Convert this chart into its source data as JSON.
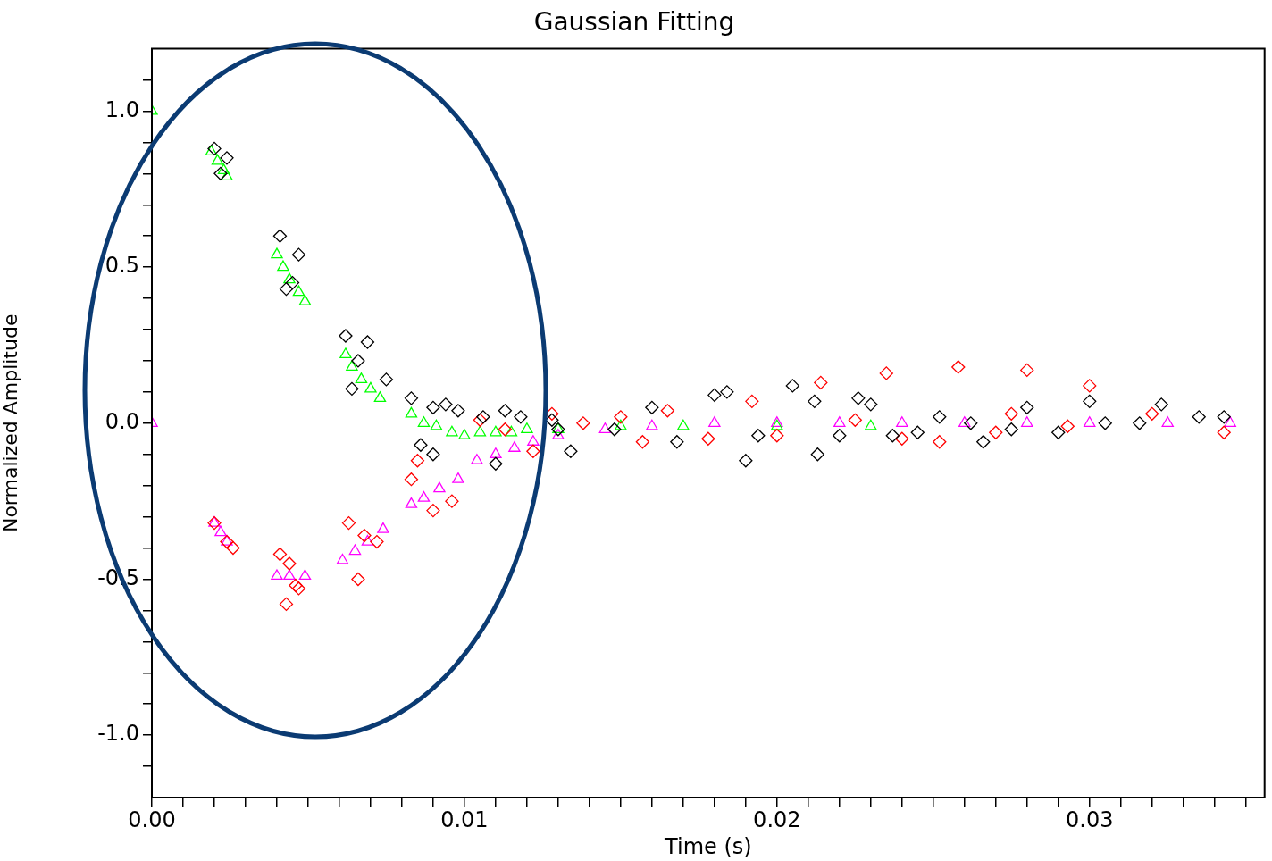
{
  "chart_data": {
    "type": "scatter",
    "title": "Gaussian Fitting",
    "xlabel": "Time (s)",
    "ylabel": "Normalized Amplitude",
    "xlim": [
      0,
      0.0356
    ],
    "ylim": [
      -1.2,
      1.2
    ],
    "xticks": [
      {
        "value": 0,
        "label": "0.00"
      },
      {
        "value": 0.001,
        "label": null
      },
      {
        "value": 0.002,
        "label": null
      },
      {
        "value": 0.003,
        "label": null
      },
      {
        "value": 0.004,
        "label": null
      },
      {
        "value": 0.005,
        "label": null
      },
      {
        "value": 0.006,
        "label": null
      },
      {
        "value": 0.007,
        "label": null
      },
      {
        "value": 0.008,
        "label": null
      },
      {
        "value": 0.009,
        "label": null
      },
      {
        "value": 0.01,
        "label": "0.01"
      },
      {
        "value": 0.011,
        "label": null
      },
      {
        "value": 0.012,
        "label": null
      },
      {
        "value": 0.013,
        "label": null
      },
      {
        "value": 0.014,
        "label": null
      },
      {
        "value": 0.015,
        "label": null
      },
      {
        "value": 0.016,
        "label": null
      },
      {
        "value": 0.017,
        "label": null
      },
      {
        "value": 0.018,
        "label": null
      },
      {
        "value": 0.019,
        "label": null
      },
      {
        "value": 0.02,
        "label": "0.02"
      },
      {
        "value": 0.021,
        "label": null
      },
      {
        "value": 0.022,
        "label": null
      },
      {
        "value": 0.023,
        "label": null
      },
      {
        "value": 0.024,
        "label": null
      },
      {
        "value": 0.025,
        "label": null
      },
      {
        "value": 0.026,
        "label": null
      },
      {
        "value": 0.027,
        "label": null
      },
      {
        "value": 0.028,
        "label": null
      },
      {
        "value": 0.029,
        "label": null
      },
      {
        "value": 0.03,
        "label": "0.03"
      },
      {
        "value": 0.031,
        "label": null
      },
      {
        "value": 0.032,
        "label": null
      },
      {
        "value": 0.033,
        "label": null
      },
      {
        "value": 0.034,
        "label": null
      },
      {
        "value": 0.035,
        "label": null
      }
    ],
    "yticks": [
      {
        "value": -1.1,
        "label": null
      },
      {
        "value": -1,
        "label": "-1.0"
      },
      {
        "value": -0.9,
        "label": null
      },
      {
        "value": -0.8,
        "label": null
      },
      {
        "value": -0.7,
        "label": null
      },
      {
        "value": -0.6,
        "label": null
      },
      {
        "value": -0.5,
        "label": "-0.5"
      },
      {
        "value": -0.4,
        "label": null
      },
      {
        "value": -0.3,
        "label": null
      },
      {
        "value": -0.2,
        "label": null
      },
      {
        "value": -0.1,
        "label": null
      },
      {
        "value": 0,
        "label": "0.0"
      },
      {
        "value": 0.1,
        "label": null
      },
      {
        "value": 0.2,
        "label": null
      },
      {
        "value": 0.3,
        "label": null
      },
      {
        "value": 0.4,
        "label": null
      },
      {
        "value": 0.5,
        "label": "0.5"
      },
      {
        "value": 0.6,
        "label": null
      },
      {
        "value": 0.7,
        "label": null
      },
      {
        "value": 0.8,
        "label": null
      },
      {
        "value": 0.9,
        "label": null
      },
      {
        "value": 1,
        "label": "1.0"
      },
      {
        "value": 1.1,
        "label": null
      }
    ],
    "grid": false,
    "legend": false,
    "series": [
      {
        "color": "#000000",
        "marker": "diamond",
        "x": [
          0.002,
          0.0024,
          0.0022,
          0.0041,
          0.0047,
          0.0043,
          0.0045,
          0.0062,
          0.0069,
          0.0066,
          0.0064,
          0.0075,
          0.0083,
          0.009,
          0.0094,
          0.0098,
          0.0086,
          0.009,
          0.0106,
          0.0113,
          0.0118,
          0.011,
          0.0128,
          0.013,
          0.0134,
          0.0148,
          0.016,
          0.0168,
          0.018,
          0.0184,
          0.019,
          0.0194,
          0.0205,
          0.0212,
          0.0213,
          0.022,
          0.0226,
          0.023,
          0.0237,
          0.0245,
          0.0252,
          0.0262,
          0.0266,
          0.0275,
          0.028,
          0.029,
          0.03,
          0.0305,
          0.0316,
          0.0323,
          0.0335,
          0.0343
        ],
        "values": [
          0.88,
          0.85,
          0.8,
          0.6,
          0.54,
          0.43,
          0.45,
          0.28,
          0.26,
          0.2,
          0.11,
          0.14,
          0.08,
          0.05,
          0.06,
          0.04,
          -0.07,
          -0.1,
          0.02,
          0.04,
          0.02,
          -0.13,
          0.01,
          -0.02,
          -0.09,
          -0.02,
          0.05,
          -0.06,
          0.09,
          0.1,
          -0.12,
          -0.04,
          0.12,
          0.07,
          -0.1,
          -0.04,
          0.08,
          0.06,
          -0.04,
          -0.03,
          0.02,
          0,
          -0.06,
          -0.02,
          0.05,
          -0.03,
          0.07,
          0,
          0,
          0.06,
          0.02,
          0.02
        ]
      },
      {
        "color": "#ff0000",
        "marker": "diamond",
        "x": [
          0.002,
          0.0024,
          0.0026,
          0.0041,
          0.0044,
          0.0046,
          0.0043,
          0.0047,
          0.0063,
          0.0068,
          0.0066,
          0.0072,
          0.0083,
          0.0085,
          0.009,
          0.0096,
          0.0105,
          0.0113,
          0.0122,
          0.0128,
          0.0138,
          0.015,
          0.0157,
          0.0165,
          0.0178,
          0.0192,
          0.02,
          0.0214,
          0.0225,
          0.0235,
          0.024,
          0.0258,
          0.0252,
          0.027,
          0.028,
          0.0275,
          0.0293,
          0.03,
          0.032,
          0.0343
        ],
        "values": [
          -0.32,
          -0.38,
          -0.4,
          -0.42,
          -0.45,
          -0.52,
          -0.58,
          -0.53,
          -0.32,
          -0.36,
          -0.5,
          -0.38,
          -0.18,
          -0.12,
          -0.28,
          -0.25,
          0.01,
          -0.02,
          -0.09,
          0.03,
          0,
          0.02,
          -0.06,
          0.04,
          -0.05,
          0.07,
          -0.04,
          0.13,
          0.01,
          0.16,
          -0.05,
          0.18,
          -0.06,
          -0.03,
          0.17,
          0.03,
          -0.01,
          0.12,
          0.03,
          -0.03
        ]
      },
      {
        "color": "#00ff00",
        "marker": "triangle",
        "x": [
          0,
          0.0019,
          0.0021,
          0.0023,
          0.0024,
          0.004,
          0.0042,
          0.0044,
          0.0047,
          0.0049,
          0.0062,
          0.0064,
          0.0067,
          0.007,
          0.0073,
          0.0083,
          0.0087,
          0.0091,
          0.0096,
          0.01,
          0.0105,
          0.011,
          0.0115,
          0.012,
          0.013,
          0.015,
          0.017,
          0.02,
          0.023
        ],
        "values": [
          1,
          0.87,
          0.84,
          0.81,
          0.79,
          0.54,
          0.5,
          0.46,
          0.42,
          0.39,
          0.22,
          0.18,
          0.14,
          0.11,
          0.08,
          0.03,
          0,
          -0.01,
          -0.03,
          -0.04,
          -0.03,
          -0.03,
          -0.03,
          -0.02,
          -0.02,
          -0.01,
          -0.01,
          -0.01,
          -0.01
        ]
      },
      {
        "color": "#ff00ff",
        "marker": "triangle",
        "x": [
          0,
          0.002,
          0.0022,
          0.0024,
          0.004,
          0.0044,
          0.0049,
          0.0061,
          0.0065,
          0.0069,
          0.0074,
          0.0083,
          0.0087,
          0.0092,
          0.0098,
          0.0104,
          0.011,
          0.0116,
          0.0122,
          0.013,
          0.0145,
          0.016,
          0.018,
          0.02,
          0.022,
          0.024,
          0.026,
          0.028,
          0.03,
          0.0325,
          0.0345
        ],
        "values": [
          0,
          -0.32,
          -0.35,
          -0.38,
          -0.49,
          -0.49,
          -0.49,
          -0.44,
          -0.41,
          -0.38,
          -0.34,
          -0.26,
          -0.24,
          -0.21,
          -0.18,
          -0.12,
          -0.1,
          -0.08,
          -0.06,
          -0.04,
          -0.02,
          -0.01,
          0,
          0,
          0,
          0,
          0,
          0,
          0,
          0,
          0
        ]
      }
    ]
  }
}
